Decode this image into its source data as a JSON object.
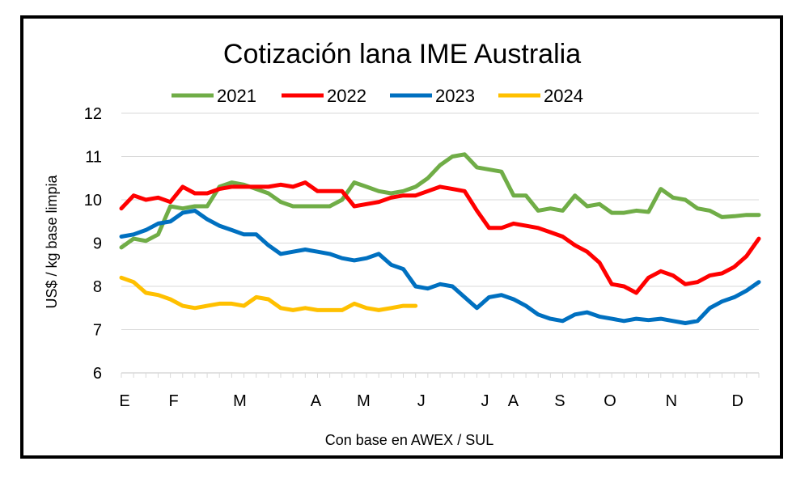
{
  "chart_data": {
    "type": "line",
    "title": "Cotización lana IME Australia",
    "xlabel": "Con base en AWEX / SUL",
    "ylabel": "US$ / kg base limpia",
    "ylim": [
      6,
      12
    ],
    "yticks": [
      6,
      7,
      8,
      9,
      10,
      11,
      12
    ],
    "xlim": [
      0,
      52
    ],
    "month_ticks": [
      {
        "label": "E",
        "week": 0
      },
      {
        "label": "F",
        "week": 4
      },
      {
        "label": "M",
        "week": 9.4
      },
      {
        "label": "A",
        "week": 15.6
      },
      {
        "label": "M",
        "week": 19.5
      },
      {
        "label": "J",
        "week": 24.2
      },
      {
        "label": "J",
        "week": 29.4
      },
      {
        "label": "A",
        "week": 31.7
      },
      {
        "label": "S",
        "week": 35.5
      },
      {
        "label": "O",
        "week": 39.6
      },
      {
        "label": "N",
        "week": 44.6
      },
      {
        "label": "D",
        "week": 50
      }
    ],
    "grid": true,
    "legend_position": "top",
    "series": [
      {
        "name": "2021",
        "color": "#70ad47",
        "values": [
          8.9,
          9.1,
          9.05,
          9.2,
          9.85,
          9.8,
          9.85,
          9.85,
          10.3,
          10.4,
          10.35,
          10.25,
          10.15,
          9.95,
          9.85,
          9.85,
          9.85,
          9.85,
          10.0,
          10.4,
          10.3,
          10.2,
          10.15,
          10.2,
          10.3,
          10.5,
          10.8,
          11.0,
          11.05,
          10.75,
          10.7,
          10.65,
          10.1,
          10.1,
          9.75,
          9.8,
          9.75,
          10.1,
          9.85,
          9.9,
          9.7,
          9.7,
          9.75,
          9.72,
          10.25,
          10.05,
          10.0,
          9.8,
          9.75,
          9.6,
          9.62,
          9.65,
          9.65
        ]
      },
      {
        "name": "2022",
        "color": "#ff0000",
        "values": [
          9.8,
          10.1,
          10.0,
          10.05,
          9.95,
          10.3,
          10.15,
          10.15,
          10.25,
          10.3,
          10.3,
          10.3,
          10.3,
          10.35,
          10.3,
          10.4,
          10.2,
          10.2,
          10.2,
          9.85,
          9.9,
          9.95,
          10.05,
          10.1,
          10.1,
          10.2,
          10.3,
          10.25,
          10.2,
          9.75,
          9.35,
          9.35,
          9.45,
          9.4,
          9.35,
          9.25,
          9.15,
          8.95,
          8.8,
          8.55,
          8.05,
          8.0,
          7.85,
          8.2,
          8.35,
          8.25,
          8.05,
          8.1,
          8.25,
          8.3,
          8.45,
          8.7,
          9.1
        ]
      },
      {
        "name": "2023",
        "color": "#0070c0",
        "values": [
          9.15,
          9.2,
          9.3,
          9.45,
          9.5,
          9.7,
          9.75,
          9.55,
          9.4,
          9.3,
          9.2,
          9.2,
          8.95,
          8.75,
          8.8,
          8.85,
          8.8,
          8.75,
          8.65,
          8.6,
          8.65,
          8.75,
          8.5,
          8.4,
          8.0,
          7.95,
          8.05,
          8.0,
          7.75,
          7.5,
          7.75,
          7.8,
          7.7,
          7.55,
          7.35,
          7.25,
          7.2,
          7.35,
          7.4,
          7.3,
          7.25,
          7.2,
          7.25,
          7.22,
          7.25,
          7.2,
          7.15,
          7.2,
          7.5,
          7.65,
          7.75,
          7.9,
          8.1
        ]
      },
      {
        "name": "2024",
        "color": "#ffc000",
        "values": [
          8.2,
          8.1,
          7.85,
          7.8,
          7.7,
          7.55,
          7.5,
          7.55,
          7.6,
          7.6,
          7.55,
          7.75,
          7.7,
          7.5,
          7.45,
          7.5,
          7.45,
          7.45,
          7.45,
          7.6,
          7.5,
          7.45,
          7.5,
          7.55,
          7.55
        ]
      }
    ]
  }
}
